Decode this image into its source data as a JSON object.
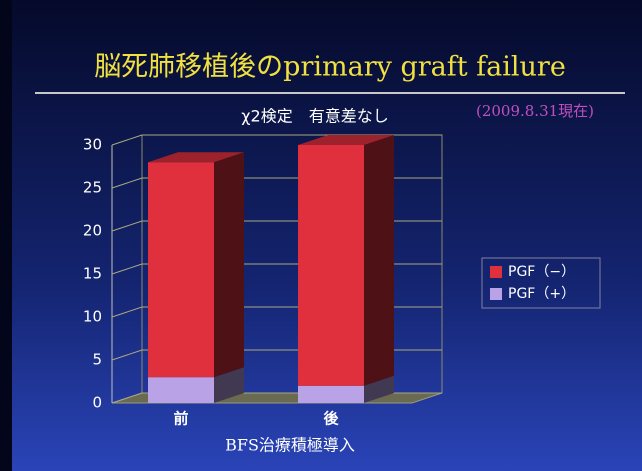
{
  "chart_data": {
    "type": "stacked_bar_3d",
    "title": "脳死肺移植後のprimary graft failure",
    "subtitle": "χ2検定　有意差なし",
    "annotation": "(2009.8.31現在)",
    "x_label": "BFS治療積極導入",
    "categories": [
      "前",
      "後"
    ],
    "series": [
      {
        "name": "PGF（+）",
        "color": "#b9a2e6",
        "values": [
          3,
          2
        ]
      },
      {
        "name": "PGF（−）",
        "color": "#e0303e",
        "values": [
          25,
          28
        ]
      }
    ],
    "ylim": [
      0,
      30
    ],
    "yticks": [
      0,
      5,
      10,
      15,
      20,
      25,
      30
    ],
    "grid": true,
    "legend": "right"
  }
}
